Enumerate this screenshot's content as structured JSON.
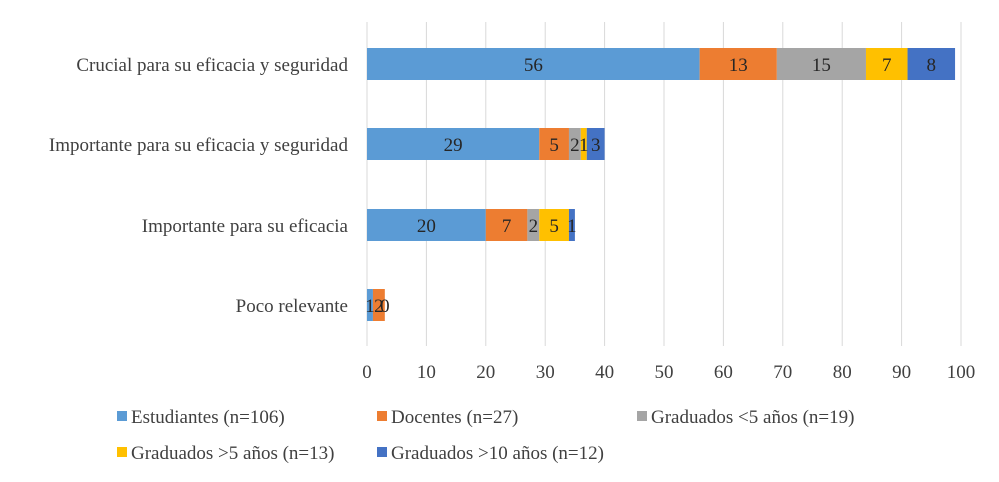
{
  "chart_data": {
    "type": "bar",
    "orientation": "horizontal",
    "stacked": true,
    "categories": [
      "Crucial para su eficacia y seguridad",
      "Importante para su eficacia y seguridad",
      "Importante para su eficacia",
      "Poco relevante"
    ],
    "series": [
      {
        "name": "Estudiantes (n=106)",
        "color": "#5b9bd5",
        "values": [
          56,
          29,
          20,
          1
        ]
      },
      {
        "name": "Docentes (n=27)",
        "color": "#ed7d31",
        "values": [
          13,
          5,
          7,
          2
        ]
      },
      {
        "name": "Graduados <5 años (n=19)",
        "color": "#a5a5a5",
        "values": [
          15,
          2,
          2,
          0
        ]
      },
      {
        "name": "Graduados >5 años (n=13)",
        "color": "#ffc000",
        "values": [
          7,
          1,
          5,
          0
        ]
      },
      {
        "name": "Graduados >10 años (n=12)",
        "color": "#4472c4",
        "values": [
          8,
          3,
          1,
          0
        ]
      }
    ],
    "data_labels": [
      [
        "56",
        "13",
        "15",
        "7",
        "8"
      ],
      [
        "29",
        "5",
        "2",
        "1",
        "3"
      ],
      [
        "20",
        "7",
        "2",
        "5",
        "1"
      ],
      [
        "1",
        "2",
        "0",
        "0",
        "0"
      ]
    ],
    "xlim": [
      0,
      100
    ],
    "xticks": [
      "0",
      "10",
      "20",
      "30",
      "40",
      "50",
      "60",
      "70",
      "80",
      "90",
      "100"
    ],
    "grid": true,
    "legend_position": "bottom",
    "title": "",
    "xlabel": "",
    "ylabel": ""
  }
}
